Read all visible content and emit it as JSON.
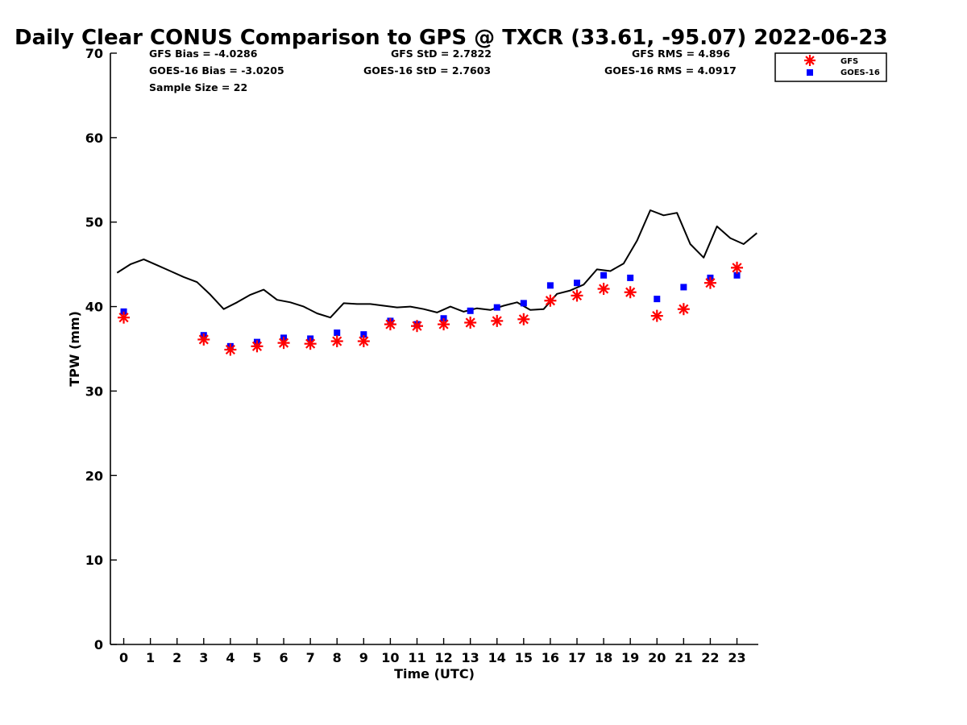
{
  "colors": {
    "gfs": "#ff0000",
    "goes": "#0000ff",
    "gps": "#000000"
  },
  "chart_data": {
    "type": "scatter",
    "title": "Daily Clear CONUS Comparison to GPS @ TXCR (33.61, -95.07) 2022-06-23",
    "xlabel": "Time (UTC)",
    "ylabel": "TPW (mm)",
    "xlim": [
      -0.5,
      23.8
    ],
    "ylim": [
      0,
      70
    ],
    "xticks": [
      "0",
      "1",
      "2",
      "3",
      "4",
      "5",
      "6",
      "7",
      "8",
      "9",
      "10",
      "11",
      "12",
      "13",
      "14",
      "15",
      "16",
      "17",
      "18",
      "19",
      "20",
      "21",
      "22",
      "23"
    ],
    "yticks": [
      "0",
      "10",
      "20",
      "30",
      "40",
      "50",
      "60",
      "70"
    ],
    "grid": false,
    "legend_position": "top-right, outside plot",
    "stats": {
      "gfs_bias": "GFS Bias = -4.0286",
      "goes_bias": "GOES-16 Bias = -3.0205",
      "sample_size": "Sample Size = 22",
      "gfs_std": "GFS StD = 2.7822",
      "goes_std": "GOES-16 StD = 2.7603",
      "gfs_rms": "GFS RMS = 4.896",
      "goes_rms": "GOES-16 RMS = 4.0917"
    },
    "series": [
      {
        "name": "GFS",
        "marker": "asterisk",
        "x": [
          0,
          3,
          4,
          5,
          6,
          7,
          8,
          9,
          10,
          11,
          12,
          13,
          14,
          15,
          16,
          17,
          18,
          19,
          20,
          21,
          22,
          23
        ],
        "y": [
          38.7,
          36.1,
          34.9,
          35.3,
          35.7,
          35.6,
          35.9,
          35.9,
          37.9,
          37.7,
          37.9,
          38.1,
          38.3,
          38.5,
          40.7,
          41.3,
          42.1,
          41.7,
          38.9,
          39.7,
          42.8,
          44.6
        ]
      },
      {
        "name": "GOES-16",
        "marker": "square",
        "x": [
          0,
          3,
          4,
          5,
          6,
          7,
          8,
          9,
          10,
          11,
          12,
          13,
          14,
          15,
          16,
          17,
          18,
          19,
          20,
          21,
          22,
          23
        ],
        "y": [
          39.4,
          36.6,
          35.3,
          35.8,
          36.3,
          36.2,
          36.9,
          36.7,
          38.3,
          37.9,
          38.6,
          39.5,
          39.9,
          40.4,
          42.5,
          42.8,
          43.7,
          43.4,
          40.9,
          42.3,
          43.4,
          43.7
        ]
      },
      {
        "marker": "line",
        "x": [
          -0.25,
          0.25,
          0.75,
          1.25,
          1.75,
          2.25,
          2.75,
          3.25,
          3.75,
          4.25,
          4.75,
          5.25,
          5.75,
          6.25,
          6.75,
          7.25,
          7.75,
          8.25,
          8.75,
          9.25,
          9.75,
          10.25,
          10.75,
          11.25,
          11.75,
          12.25,
          12.75,
          13.25,
          13.75,
          14.25,
          14.75,
          15.25,
          15.75,
          16.25,
          16.75,
          17.25,
          17.75,
          18.25,
          18.75,
          19.25,
          19.75,
          20.25,
          20.75,
          21.25,
          21.75,
          22.25,
          22.75,
          23.25,
          23.75
        ],
        "y": [
          44.0,
          45.0,
          45.6,
          44.9,
          44.2,
          43.5,
          42.9,
          41.4,
          39.7,
          40.5,
          41.4,
          42.0,
          40.8,
          40.5,
          40.0,
          39.2,
          38.7,
          40.4,
          40.3,
          40.3,
          40.1,
          39.9,
          40.0,
          39.7,
          39.3,
          40.0,
          39.4,
          39.8,
          39.6,
          40.1,
          40.5,
          39.6,
          39.7,
          41.5,
          41.9,
          42.6,
          44.4,
          44.2,
          45.1,
          47.8,
          51.4,
          50.8,
          51.1,
          47.4,
          45.8,
          49.5,
          48.1,
          47.4,
          48.7
        ]
      }
    ]
  }
}
